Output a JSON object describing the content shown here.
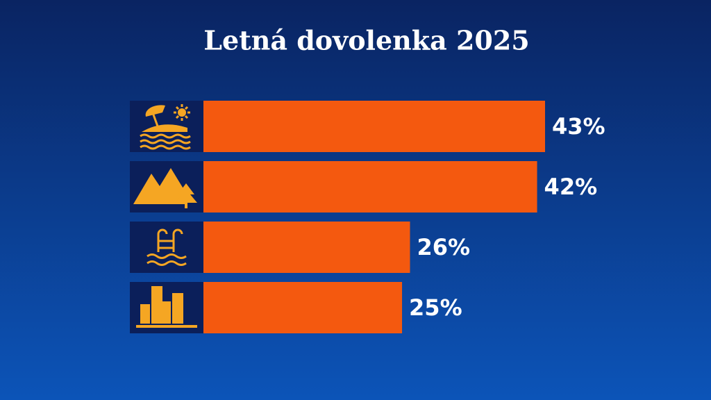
{
  "chart_data": {
    "type": "bar",
    "orientation": "horizontal",
    "title": "Letná dovolenka 2025",
    "categories": [
      null,
      null,
      null,
      null
    ],
    "values": [
      43,
      42,
      26,
      25
    ],
    "value_labels": [
      "43%",
      "42%",
      "26%",
      "25%"
    ],
    "color": "#f4590f"
  }
}
